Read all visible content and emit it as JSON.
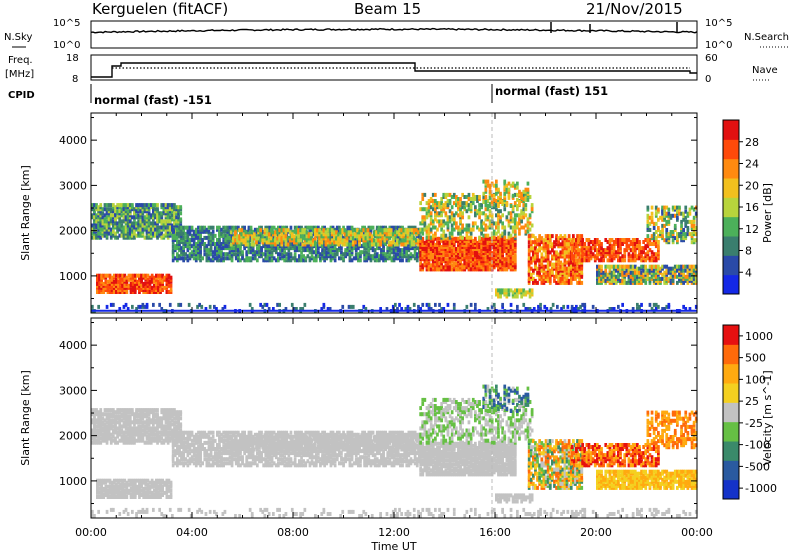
{
  "header": {
    "station": "Kerguelen (fitACF)",
    "beam": "Beam 15",
    "date": "21/Nov/2015"
  },
  "noise_panel": {
    "left_label": "N.Sky",
    "right_label": "N.Search",
    "left_ticks": [
      "10^5",
      "10^0"
    ],
    "right_ticks": [
      "10^5",
      "10^0"
    ]
  },
  "freq_panel": {
    "left_label_1": "Freq.",
    "left_label_2": "[MHz]",
    "left_ticks": [
      "18",
      "8"
    ],
    "right_label": "Nave",
    "right_ticks": [
      "60",
      "0"
    ]
  },
  "cpid_panel": {
    "label": "CPID",
    "mode_1": "normal (fast) -151",
    "mode_2": "normal (fast) 151"
  },
  "chart_data": [
    {
      "type": "heatmap",
      "name": "power",
      "ylabel": "Slant Range [km]",
      "ylim": [
        180,
        4600
      ],
      "y_ticks": [
        "1000",
        "2000",
        "3000",
        "4000"
      ],
      "xlabel": "Time UT",
      "x_ticks": [
        "00:00",
        "04:00",
        "08:00",
        "12:00",
        "16:00",
        "20:00",
        "00:00"
      ],
      "colorbar_label": "Power [dB]",
      "colorbar_ticks": [
        "4",
        "8",
        "12",
        "16",
        "20",
        "24",
        "28"
      ],
      "colors": [
        "#1428e6",
        "#2a4aa8",
        "#3a7e6e",
        "#4cb05a",
        "#b8d43c",
        "#f2c01e",
        "#ff8a10",
        "#ff4a0a",
        "#e21010"
      ]
    },
    {
      "type": "heatmap",
      "name": "velocity",
      "ylabel": "Slant Range [km]",
      "ylim": [
        180,
        4600
      ],
      "y_ticks": [
        "1000",
        "2000",
        "3000",
        "4000"
      ],
      "xlabel": "Time UT",
      "x_ticks": [
        "00:00",
        "04:00",
        "08:00",
        "12:00",
        "16:00",
        "20:00",
        "00:00"
      ],
      "colorbar_label": "Velocity [m s^-1]",
      "colorbar_ticks": [
        "1000",
        "500",
        "100",
        "25",
        "-25",
        "-100",
        "-500",
        "-1000"
      ],
      "colors": [
        "#1432c8",
        "#2a5aa0",
        "#3a8a6a",
        "#66c044",
        "#c2c2c2",
        "#f4d020",
        "#ffaa10",
        "#ff6a0a",
        "#e61010"
      ]
    }
  ],
  "axes": {
    "x_title": "Time UT",
    "y_title": "Slant Range [km]"
  }
}
